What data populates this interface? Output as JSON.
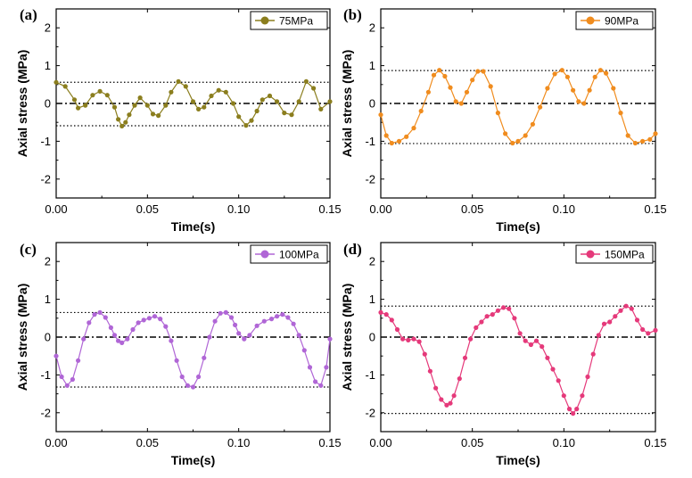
{
  "chart_data": [
    {
      "panel": "(a)",
      "type": "line",
      "xlabel": "Time(s)",
      "ylabel": "Axial stress (MPa)",
      "xlim": [
        0,
        0.15
      ],
      "ylim": [
        -2.5,
        2.5
      ],
      "xticks": [
        "0.00",
        "0.05",
        "0.10",
        "0.15"
      ],
      "yticks": [
        "-2",
        "-1",
        "0",
        "1",
        "2"
      ],
      "ref_lines": [
        0.56,
        0,
        -0.59
      ],
      "legend_position": "top-right",
      "series": [
        {
          "name": "75MPa",
          "color": "#8b7e1e",
          "x": [
            0.0,
            0.005,
            0.01,
            0.012,
            0.016,
            0.02,
            0.024,
            0.028,
            0.032,
            0.034,
            0.036,
            0.038,
            0.04,
            0.043,
            0.046,
            0.05,
            0.053,
            0.056,
            0.06,
            0.063,
            0.067,
            0.071,
            0.075,
            0.078,
            0.081,
            0.085,
            0.089,
            0.093,
            0.097,
            0.1,
            0.104,
            0.107,
            0.11,
            0.113,
            0.117,
            0.121,
            0.125,
            0.129,
            0.133,
            0.137,
            0.141,
            0.145,
            0.15
          ],
          "y": [
            0.56,
            0.45,
            0.1,
            -0.12,
            -0.05,
            0.22,
            0.32,
            0.22,
            -0.1,
            -0.42,
            -0.6,
            -0.5,
            -0.3,
            -0.05,
            0.15,
            -0.05,
            -0.28,
            -0.32,
            -0.05,
            0.3,
            0.58,
            0.45,
            0.05,
            -0.15,
            -0.1,
            0.2,
            0.35,
            0.3,
            0.0,
            -0.35,
            -0.58,
            -0.45,
            -0.2,
            0.1,
            0.2,
            0.05,
            -0.25,
            -0.3,
            0.05,
            0.58,
            0.4,
            -0.15,
            0.05
          ]
        }
      ]
    },
    {
      "panel": "(b)",
      "type": "line",
      "xlabel": "Time(s)",
      "ylabel": "Axial stress (MPa)",
      "xlim": [
        0,
        0.15
      ],
      "ylim": [
        -2.5,
        2.5
      ],
      "xticks": [
        "0.00",
        "0.05",
        "0.10",
        "0.15"
      ],
      "yticks": [
        "-2",
        "-1",
        "0",
        "1",
        "2"
      ],
      "ref_lines": [
        0.87,
        0,
        -1.06
      ],
      "legend_position": "top-right",
      "series": [
        {
          "name": "90MPa",
          "color": "#f08c1e",
          "x": [
            0.0,
            0.003,
            0.006,
            0.01,
            0.014,
            0.018,
            0.022,
            0.026,
            0.029,
            0.032,
            0.035,
            0.038,
            0.041,
            0.044,
            0.047,
            0.05,
            0.053,
            0.056,
            0.06,
            0.064,
            0.068,
            0.072,
            0.075,
            0.079,
            0.083,
            0.087,
            0.091,
            0.095,
            0.099,
            0.102,
            0.105,
            0.108,
            0.111,
            0.114,
            0.117,
            0.12,
            0.123,
            0.127,
            0.131,
            0.135,
            0.139,
            0.143,
            0.147,
            0.15
          ],
          "y": [
            -0.3,
            -0.85,
            -1.05,
            -1.0,
            -0.88,
            -0.65,
            -0.2,
            0.3,
            0.75,
            0.88,
            0.72,
            0.42,
            0.05,
            0.0,
            0.3,
            0.62,
            0.85,
            0.85,
            0.45,
            -0.25,
            -0.8,
            -1.05,
            -1.0,
            -0.85,
            -0.55,
            -0.1,
            0.4,
            0.78,
            0.88,
            0.7,
            0.35,
            0.05,
            0.0,
            0.35,
            0.7,
            0.88,
            0.8,
            0.4,
            -0.25,
            -0.85,
            -1.05,
            -1.0,
            -0.95,
            -0.8
          ]
        }
      ]
    },
    {
      "panel": "(c)",
      "type": "line",
      "xlabel": "Time(s)",
      "ylabel": "Axial stress (MPa)",
      "xlim": [
        0,
        0.15
      ],
      "ylim": [
        -2.5,
        2.5
      ],
      "xticks": [
        "0.00",
        "0.05",
        "0.10",
        "0.15"
      ],
      "yticks": [
        "-2",
        "-1",
        "0",
        "1",
        "2"
      ],
      "ref_lines": [
        0.65,
        0,
        -1.32
      ],
      "legend_position": "top-right",
      "series": [
        {
          "name": "100MPa",
          "color": "#b066d6",
          "x": [
            0.0,
            0.003,
            0.006,
            0.009,
            0.012,
            0.015,
            0.018,
            0.021,
            0.024,
            0.027,
            0.03,
            0.032,
            0.034,
            0.036,
            0.039,
            0.042,
            0.045,
            0.048,
            0.051,
            0.054,
            0.057,
            0.06,
            0.063,
            0.066,
            0.069,
            0.072,
            0.075,
            0.078,
            0.081,
            0.084,
            0.087,
            0.09,
            0.093,
            0.096,
            0.098,
            0.1,
            0.103,
            0.106,
            0.11,
            0.114,
            0.118,
            0.121,
            0.124,
            0.127,
            0.13,
            0.133,
            0.136,
            0.139,
            0.142,
            0.145,
            0.148,
            0.15
          ],
          "y": [
            -0.5,
            -1.05,
            -1.28,
            -1.12,
            -0.62,
            -0.05,
            0.38,
            0.6,
            0.65,
            0.52,
            0.25,
            0.05,
            -0.1,
            -0.15,
            -0.05,
            0.2,
            0.38,
            0.45,
            0.5,
            0.55,
            0.48,
            0.28,
            -0.1,
            -0.62,
            -1.05,
            -1.28,
            -1.32,
            -1.05,
            -0.55,
            0.0,
            0.42,
            0.63,
            0.65,
            0.52,
            0.32,
            0.1,
            -0.05,
            0.05,
            0.3,
            0.42,
            0.48,
            0.55,
            0.6,
            0.52,
            0.35,
            0.05,
            -0.35,
            -0.8,
            -1.18,
            -1.28,
            -0.8,
            -0.05
          ]
        }
      ]
    },
    {
      "panel": "(d)",
      "type": "line",
      "xlabel": "Time(s)",
      "ylabel": "Axial stress (MPa)",
      "xlim": [
        0,
        0.15
      ],
      "ylim": [
        -2.5,
        2.5
      ],
      "xticks": [
        "0.00",
        "0.05",
        "0.10",
        "0.15"
      ],
      "yticks": [
        "-2",
        "-1",
        "0",
        "1",
        "2"
      ],
      "ref_lines": [
        0.82,
        0,
        -2.02
      ],
      "legend_position": "top-right",
      "series": [
        {
          "name": "150MPa",
          "color": "#e5397a",
          "x": [
            0.0,
            0.003,
            0.006,
            0.009,
            0.012,
            0.015,
            0.018,
            0.021,
            0.024,
            0.027,
            0.03,
            0.033,
            0.036,
            0.038,
            0.04,
            0.043,
            0.046,
            0.049,
            0.052,
            0.055,
            0.058,
            0.061,
            0.064,
            0.067,
            0.07,
            0.073,
            0.076,
            0.079,
            0.082,
            0.085,
            0.088,
            0.091,
            0.094,
            0.097,
            0.1,
            0.103,
            0.105,
            0.107,
            0.11,
            0.113,
            0.116,
            0.119,
            0.122,
            0.125,
            0.128,
            0.131,
            0.134,
            0.137,
            0.14,
            0.143,
            0.146,
            0.15
          ],
          "y": [
            0.65,
            0.6,
            0.45,
            0.2,
            -0.05,
            -0.08,
            -0.05,
            -0.12,
            -0.45,
            -0.9,
            -1.35,
            -1.65,
            -1.8,
            -1.75,
            -1.55,
            -1.1,
            -0.55,
            -0.05,
            0.25,
            0.4,
            0.55,
            0.6,
            0.7,
            0.78,
            0.75,
            0.5,
            0.1,
            -0.1,
            -0.2,
            -0.1,
            -0.25,
            -0.55,
            -0.85,
            -1.15,
            -1.55,
            -1.9,
            -2.02,
            -1.9,
            -1.55,
            -1.05,
            -0.45,
            0.05,
            0.35,
            0.4,
            0.55,
            0.7,
            0.82,
            0.75,
            0.45,
            0.2,
            0.1,
            0.18
          ]
        }
      ]
    }
  ]
}
